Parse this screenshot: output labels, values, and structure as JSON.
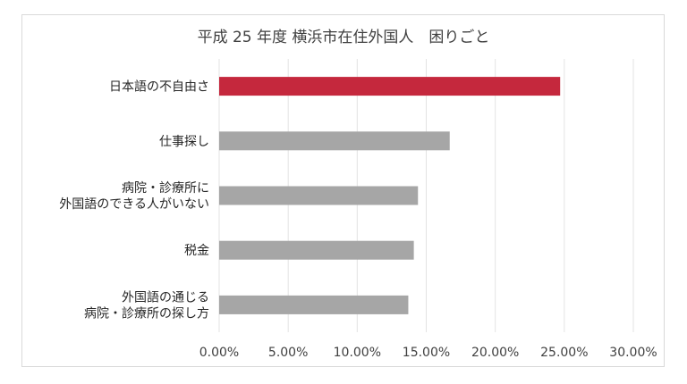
{
  "chart_data": {
    "type": "bar",
    "orientation": "horizontal",
    "title": "平成 25 年度 横浜市在住外国人　困りごと",
    "categories": [
      [
        "日本語の不自由さ"
      ],
      [
        "仕事探し"
      ],
      [
        "病院・診療所に",
        "外国語のできる人がいない"
      ],
      [
        "税金"
      ],
      [
        "外国語の通じる",
        "病院・診療所の探し方"
      ]
    ],
    "values": [
      0.247,
      0.167,
      0.144,
      0.141,
      0.137
    ],
    "bar_colors": [
      "#c5283d",
      "#a6a6a6",
      "#a6a6a6",
      "#a6a6a6",
      "#a6a6a6"
    ],
    "x_ticks": [
      "0.00%",
      "5.00%",
      "10.00%",
      "15.00%",
      "20.00%",
      "25.00%",
      "30.00%"
    ],
    "xlim": [
      0,
      0.3
    ],
    "grid": true,
    "xlabel": "",
    "ylabel": ""
  }
}
